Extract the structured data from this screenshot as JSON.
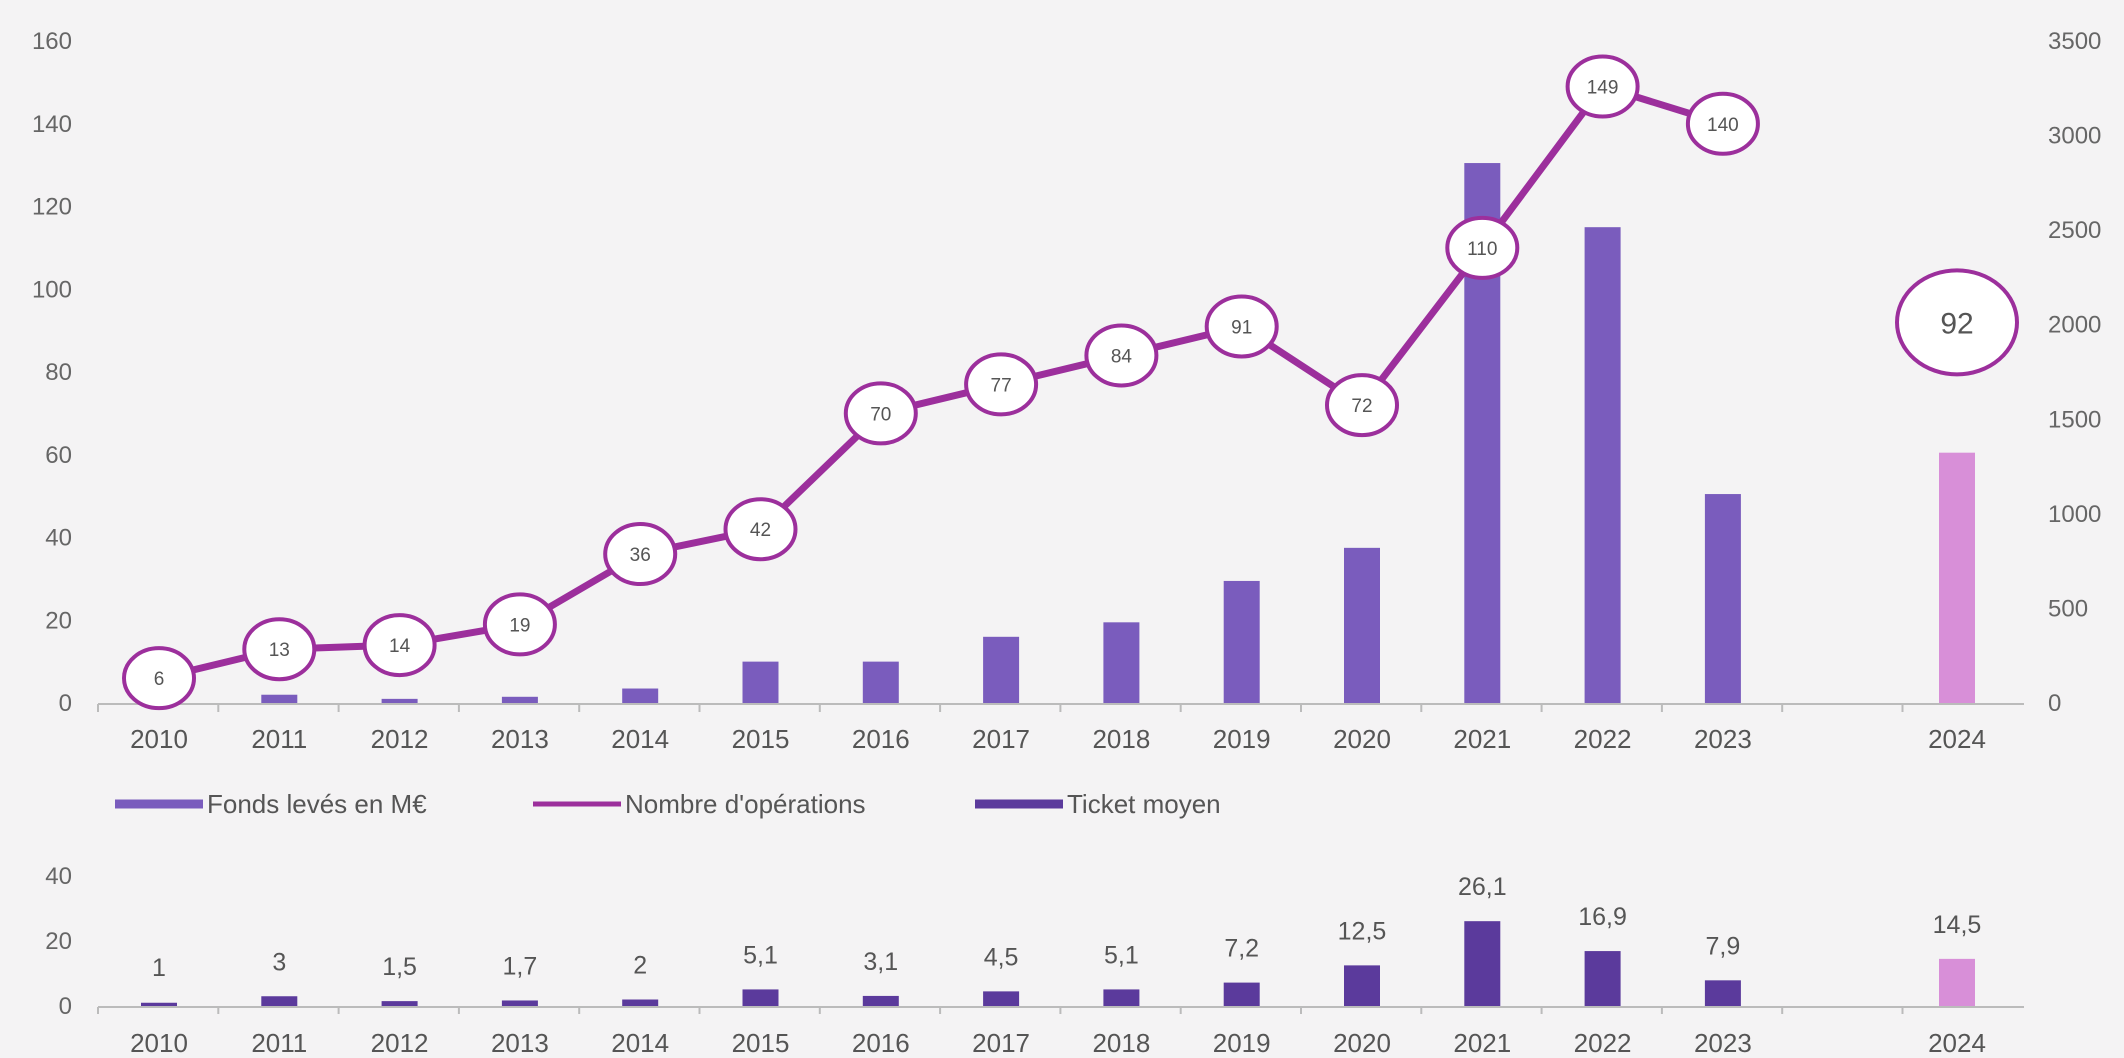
{
  "chart_data": [
    {
      "type": "bar",
      "categories": [
        "2010",
        "2011",
        "2012",
        "2013",
        "2014",
        "2015",
        "2016",
        "2017",
        "2018",
        "2019",
        "2020",
        "2021",
        "2022",
        "2023",
        "2024"
      ],
      "series": [
        {
          "name": "Fonds levés en M€",
          "axis": "left",
          "values": [
            0,
            2,
            1,
            1.5,
            3.5,
            10,
            10,
            16,
            19.5,
            29.5,
            37.5,
            130.5,
            115,
            50.5,
            60.5
          ]
        },
        {
          "name": "Nombre d'opérations",
          "axis": "right",
          "kind": "line",
          "values": [
            6,
            13,
            14,
            19,
            36,
            42,
            70,
            77,
            84,
            91,
            72,
            110,
            149,
            140,
            92
          ],
          "labels": [
            "6",
            "13",
            "14",
            "19",
            "36",
            "42",
            "70",
            "77",
            "84",
            "91",
            "72",
            "110",
            "149",
            "140",
            "92"
          ]
        }
      ],
      "left_axis": {
        "ticks": [
          "0",
          "20",
          "40",
          "60",
          "80",
          "100",
          "120",
          "140",
          "160"
        ],
        "ylim": [
          0,
          160
        ]
      },
      "right_axis": {
        "ticks": [
          "0",
          "500",
          "1000",
          "1500",
          "2000",
          "2500",
          "3000",
          "3500"
        ],
        "ylim": [
          0,
          3500
        ]
      },
      "grid": false,
      "legend_position": "bottom",
      "colors": {
        "bar": "#7a5cbd",
        "bar_highlight": "#d88fd8",
        "line": "#9c2f9c",
        "bubble_fill": "#ffffff"
      }
    },
    {
      "type": "bar",
      "categories": [
        "2010",
        "2011",
        "2012",
        "2013",
        "2014",
        "2015",
        "2016",
        "2017",
        "2018",
        "2019",
        "2020",
        "2021",
        "2022",
        "2023",
        "2024"
      ],
      "series": [
        {
          "name": "Ticket moyen",
          "values": [
            1,
            3,
            1.5,
            1.7,
            2,
            5.1,
            3.1,
            4.5,
            5.1,
            7.2,
            12.5,
            26.1,
            16.9,
            7.9,
            14.5
          ],
          "labels": [
            "1",
            "3",
            "1,5",
            "1,7",
            "2",
            "5,1",
            "3,1",
            "4,5",
            "5,1",
            "7,2",
            "12,5",
            "26,1",
            "16,9",
            "7,9",
            "14,5"
          ]
        }
      ],
      "left_axis": {
        "ticks": [
          "0",
          "20",
          "40"
        ],
        "ylim": [
          0,
          40
        ]
      },
      "grid": false,
      "colors": {
        "bar": "#5b3a9c",
        "bar_highlight": "#d88fd8"
      }
    }
  ],
  "legend": [
    {
      "label": "Fonds levés en M€",
      "color": "#7a5cbd"
    },
    {
      "label": "Nombre d'opérations",
      "color": "#9c2f9c"
    },
    {
      "label": "Ticket moyen",
      "color": "#5b3a9c"
    }
  ]
}
